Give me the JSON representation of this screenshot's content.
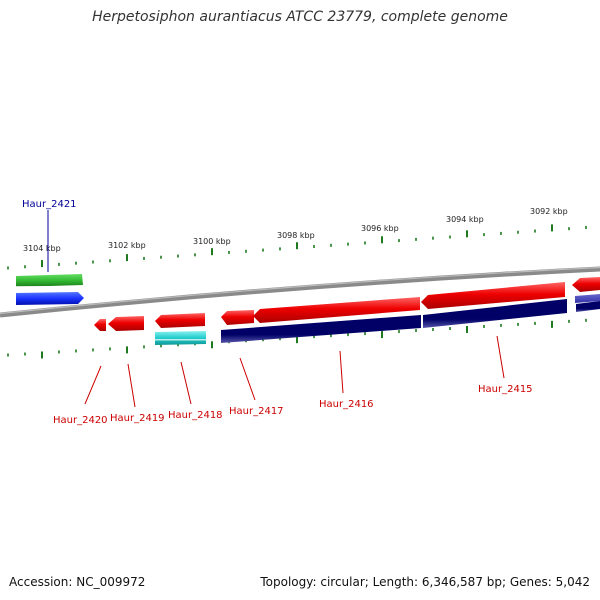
{
  "title": "Herpetosiphon aurantiacus ATCC 23779, complete genome",
  "accession": "Accession: NC_009972",
  "stats": "Topology: circular; Length: 6,346,587 bp; Genes: 5,042",
  "colors": {
    "backbone": "#8a8a8a",
    "ticks": "#1f7a1f",
    "label_forward": "#000099",
    "label_reverse": "#cc0000",
    "cds_reverse": "#ee0000",
    "cds_forward": "#1a33ff",
    "gene_green": "#33bb33",
    "gene_cyan": "#22cccc",
    "gene_navy": "#000066"
  },
  "ticks": [
    {
      "label": "3104 kbp"
    },
    {
      "label": "3102 kbp"
    },
    {
      "label": "3100 kbp"
    },
    {
      "label": "3098 kbp"
    },
    {
      "label": "3096 kbp"
    },
    {
      "label": "3094 kbp"
    },
    {
      "label": "3092 kbp"
    }
  ],
  "genes": [
    {
      "id": "Haur_2421",
      "strand": "forward"
    },
    {
      "id": "Haur_2420",
      "strand": "reverse"
    },
    {
      "id": "Haur_2419",
      "strand": "reverse"
    },
    {
      "id": "Haur_2418",
      "strand": "reverse"
    },
    {
      "id": "Haur_2417",
      "strand": "reverse"
    },
    {
      "id": "Haur_2416",
      "strand": "reverse"
    },
    {
      "id": "Haur_2415",
      "strand": "reverse"
    }
  ]
}
